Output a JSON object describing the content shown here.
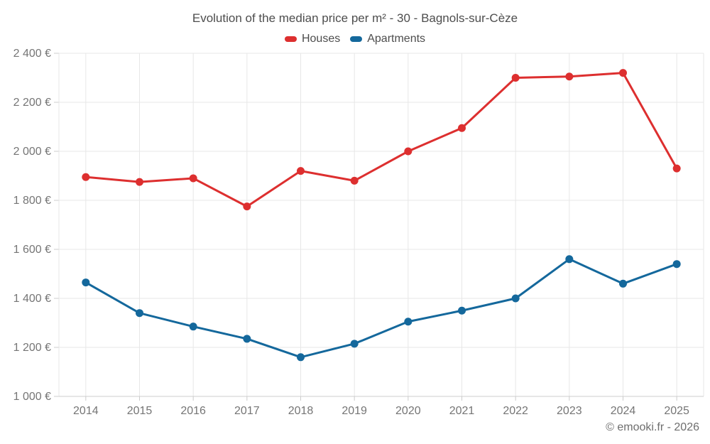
{
  "chart_data": {
    "type": "line",
    "title": "Evolution of the median price per m² - 30 - Bagnols-sur-Cèze",
    "categories": [
      "2014",
      "2015",
      "2016",
      "2017",
      "2018",
      "2019",
      "2020",
      "2021",
      "2022",
      "2023",
      "2024",
      "2025"
    ],
    "series": [
      {
        "name": "Houses",
        "color": "#dd2f2f",
        "values": [
          1895,
          1875,
          1890,
          1775,
          1920,
          1880,
          2000,
          2095,
          2300,
          2305,
          2320,
          1930
        ]
      },
      {
        "name": "Apartments",
        "color": "#14689c",
        "values": [
          1465,
          1340,
          1285,
          1235,
          1160,
          1215,
          1305,
          1350,
          1400,
          1560,
          1460,
          1540
        ]
      }
    ],
    "ylim": [
      1000,
      2400
    ],
    "y_ticks": [
      {
        "value": 1000,
        "label": "1 000 €"
      },
      {
        "value": 1200,
        "label": "1 200 €"
      },
      {
        "value": 1400,
        "label": "1 400 €"
      },
      {
        "value": 1600,
        "label": "1 600 €"
      },
      {
        "value": 1800,
        "label": "1 800 €"
      },
      {
        "value": 2000,
        "label": "2 000 €"
      },
      {
        "value": 2200,
        "label": "2 200 €"
      },
      {
        "value": 2400,
        "label": "2 400 €"
      }
    ],
    "grid": true,
    "legend_position": "top",
    "unit": "€"
  },
  "colors": {
    "grid": "#e7e7e7",
    "axis": "#cccccc",
    "tick_label": "#757575"
  },
  "footer": {
    "copyright": "© emooki.fr - 2026"
  }
}
